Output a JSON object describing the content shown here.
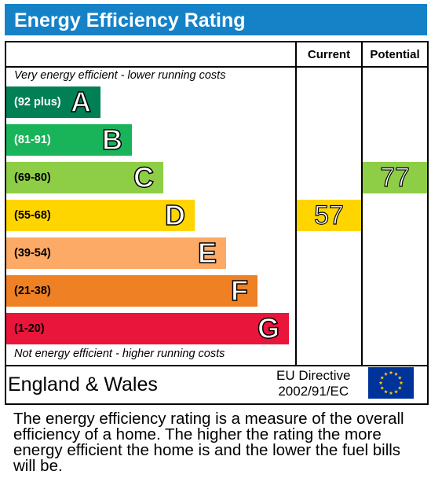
{
  "title": "Energy Efficiency Rating",
  "columns": {
    "current": "Current",
    "potential": "Potential"
  },
  "captions": {
    "top": "Very energy efficient - lower running costs",
    "bottom": "Not energy efficient - higher running costs"
  },
  "colors": {
    "title_bar": "#1582c8",
    "A": "#008054",
    "B": "#19b459",
    "C": "#8dce46",
    "D": "#ffd500",
    "E": "#fcaa65",
    "F": "#ef8023",
    "G": "#e9153b"
  },
  "chart_data": {
    "type": "bar",
    "title": "Energy Efficiency Rating",
    "categories": [
      "A",
      "B",
      "C",
      "D",
      "E",
      "F",
      "G"
    ],
    "bands": [
      {
        "letter": "A",
        "range": "(92 plus)",
        "min": 92,
        "max": 100
      },
      {
        "letter": "B",
        "range": "(81-91)",
        "min": 81,
        "max": 91
      },
      {
        "letter": "C",
        "range": "(69-80)",
        "min": 69,
        "max": 80
      },
      {
        "letter": "D",
        "range": "(55-68)",
        "min": 55,
        "max": 68
      },
      {
        "letter": "E",
        "range": "(39-54)",
        "min": 39,
        "max": 54
      },
      {
        "letter": "F",
        "range": "(21-38)",
        "min": 21,
        "max": 38
      },
      {
        "letter": "G",
        "range": "(1-20)",
        "min": 1,
        "max": 20
      }
    ],
    "series": [
      {
        "name": "Current",
        "value": 57,
        "band": "D"
      },
      {
        "name": "Potential",
        "value": 77,
        "band": "C"
      }
    ]
  },
  "footer": {
    "region": "England & Wales",
    "directive_line1": "EU Directive",
    "directive_line2": "2002/91/EC"
  },
  "explanation": "The energy efficiency rating is a measure of the overall efficiency of a home. The higher the rating the more energy efficient the home is and the lower the fuel bills will be."
}
